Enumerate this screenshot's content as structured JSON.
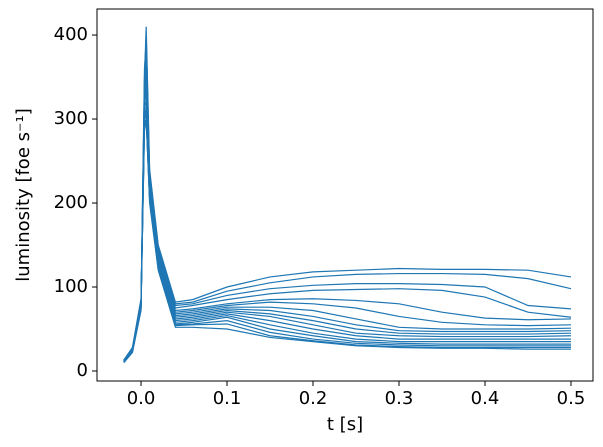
{
  "chart_data": {
    "type": "line",
    "x_label": "t [s]",
    "y_label": "luminosity [foe s⁻¹]",
    "x": [
      -0.02,
      -0.01,
      0,
      0.004,
      0.006,
      0.01,
      0.02,
      0.04,
      0.06,
      0.1,
      0.15,
      0.2,
      0.25,
      0.3,
      0.35,
      0.4,
      0.45,
      0.5
    ],
    "xlim": [
      -0.0512,
      0.5256
    ],
    "ylim": [
      -11.9,
      431
    ],
    "xticks": [
      {
        "value": 0,
        "label": "0.0"
      },
      0.1,
      0.2,
      0.3,
      0.4,
      0.5
    ],
    "yticks": [
      0,
      100,
      200,
      300,
      400
    ],
    "series": [
      {
        "color": "#1f77b4",
        "values": [
          12,
          25,
          80,
          350,
          410,
          240,
          150,
          82,
          85,
          100,
          112,
          118,
          120,
          122,
          121,
          121,
          120,
          112
        ]
      },
      {
        "color": "#1f77b4",
        "values": [
          11,
          24,
          78,
          340,
          400,
          235,
          148,
          80,
          82,
          95,
          105,
          112,
          115,
          116,
          116,
          115,
          110,
          98
        ]
      },
      {
        "color": "#1f77b4",
        "values": [
          13,
          26,
          82,
          360,
          390,
          230,
          145,
          78,
          80,
          90,
          98,
          102,
          104,
          104,
          103,
          100,
          78,
          74
        ]
      },
      {
        "color": "#1f77b4",
        "values": [
          12,
          25,
          80,
          330,
          380,
          228,
          142,
          75,
          78,
          85,
          92,
          96,
          97,
          98,
          96,
          88,
          70,
          64
        ]
      },
      {
        "color": "#1f77b4",
        "values": [
          10,
          23,
          75,
          320,
          370,
          225,
          140,
          72,
          74,
          80,
          85,
          86,
          84,
          80,
          70,
          63,
          61,
          62
        ]
      },
      {
        "color": "#1f77b4",
        "values": [
          11,
          24,
          77,
          345,
          360,
          222,
          138,
          70,
          72,
          78,
          82,
          80,
          75,
          65,
          58,
          55,
          54,
          55
        ]
      },
      {
        "color": "#1f77b4",
        "values": [
          12,
          25,
          79,
          335,
          350,
          220,
          135,
          68,
          70,
          76,
          76,
          72,
          62,
          52,
          50,
          50,
          50,
          51
        ]
      },
      {
        "color": "#1f77b4",
        "values": [
          13,
          27,
          84,
          310,
          340,
          218,
          132,
          66,
          68,
          74,
          72,
          65,
          55,
          48,
          47,
          47,
          47,
          48
        ]
      },
      {
        "color": "#1f77b4",
        "values": [
          11,
          23,
          76,
          325,
          330,
          215,
          130,
          64,
          66,
          72,
          68,
          60,
          50,
          45,
          44,
          44,
          44,
          45
        ]
      },
      {
        "color": "#1f77b4",
        "values": [
          12,
          24,
          78,
          315,
          320,
          212,
          128,
          62,
          64,
          70,
          65,
          55,
          45,
          42,
          41,
          41,
          41,
          42
        ]
      },
      {
        "color": "#1f77b4",
        "values": [
          10,
          22,
          72,
          300,
          315,
          210,
          126,
          60,
          62,
          68,
          60,
          50,
          42,
          38,
          38,
          38,
          38,
          38
        ]
      },
      {
        "color": "#1f77b4",
        "values": [
          12,
          26,
          81,
          305,
          310,
          208,
          125,
          58,
          60,
          66,
          55,
          45,
          38,
          35,
          35,
          35,
          35,
          35
        ]
      },
      {
        "color": "#1f77b4",
        "values": [
          13,
          28,
          86,
          300,
          305,
          206,
          124,
          56,
          58,
          64,
          50,
          42,
          35,
          33,
          32,
          32,
          32,
          32
        ]
      },
      {
        "color": "#1f77b4",
        "values": [
          11,
          24,
          74,
          295,
          300,
          204,
          122,
          55,
          56,
          60,
          46,
          38,
          33,
          31,
          30,
          30,
          30,
          30
        ]
      },
      {
        "color": "#1f77b4",
        "values": [
          12,
          25,
          79,
          290,
          300,
          202,
          121,
          54,
          55,
          56,
          42,
          36,
          31,
          29,
          28,
          28,
          28,
          28
        ]
      },
      {
        "color": "#1f77b4",
        "values": [
          12,
          25,
          80,
          285,
          300,
          200,
          120,
          52,
          52,
          50,
          40,
          35,
          30,
          28,
          27,
          27,
          26,
          26
        ]
      }
    ]
  }
}
